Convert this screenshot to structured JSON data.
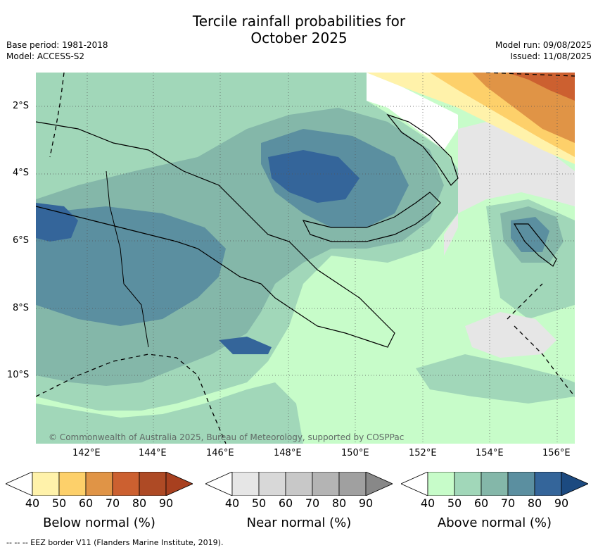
{
  "title_line1": "Tercile rainfall probabilities for",
  "title_line2": "October 2025",
  "base_period": "Base period: 1981-2018",
  "model": "Model: ACCESS-S2",
  "model_run": "Model run: 09/08/2025",
  "issued": "Issued: 11/08/2025",
  "copyright": "© Commonwealth of Australia 2025, Bureau of Meteorology, supported by COSPPac",
  "footer": "--  --  -- EEZ border V11 (Flanders Marine Institute, 2019).",
  "lat_labels": [
    "2°S",
    "4°S",
    "6°S",
    "8°S",
    "10°S"
  ],
  "lon_labels": [
    "142°E",
    "144°E",
    "146°E",
    "148°E",
    "150°E",
    "152°E",
    "154°E",
    "156°E"
  ],
  "colorbars": [
    {
      "label": "Below normal (%)",
      "ticks": [
        "40",
        "50",
        "60",
        "70",
        "80",
        "90"
      ],
      "colors": [
        "#fff2aa",
        "#fdd06a",
        "#e09446",
        "#cc6030",
        "#ae4a25",
        "#a8401f"
      ]
    },
    {
      "label": "Near normal (%)",
      "ticks": [
        "40",
        "50",
        "60",
        "70",
        "80",
        "90"
      ],
      "colors": [
        "#e6e6e6",
        "#d8d8d8",
        "#c8c8c8",
        "#b4b4b4",
        "#a0a0a0",
        "#888888"
      ]
    },
    {
      "label": "Above normal (%)",
      "ticks": [
        "40",
        "50",
        "60",
        "70",
        "80",
        "90"
      ],
      "colors": [
        "#c7fcc9",
        "#a1d7b9",
        "#84b7a9",
        "#5b8fa0",
        "#34659a",
        "#1c4a80"
      ]
    }
  ]
}
